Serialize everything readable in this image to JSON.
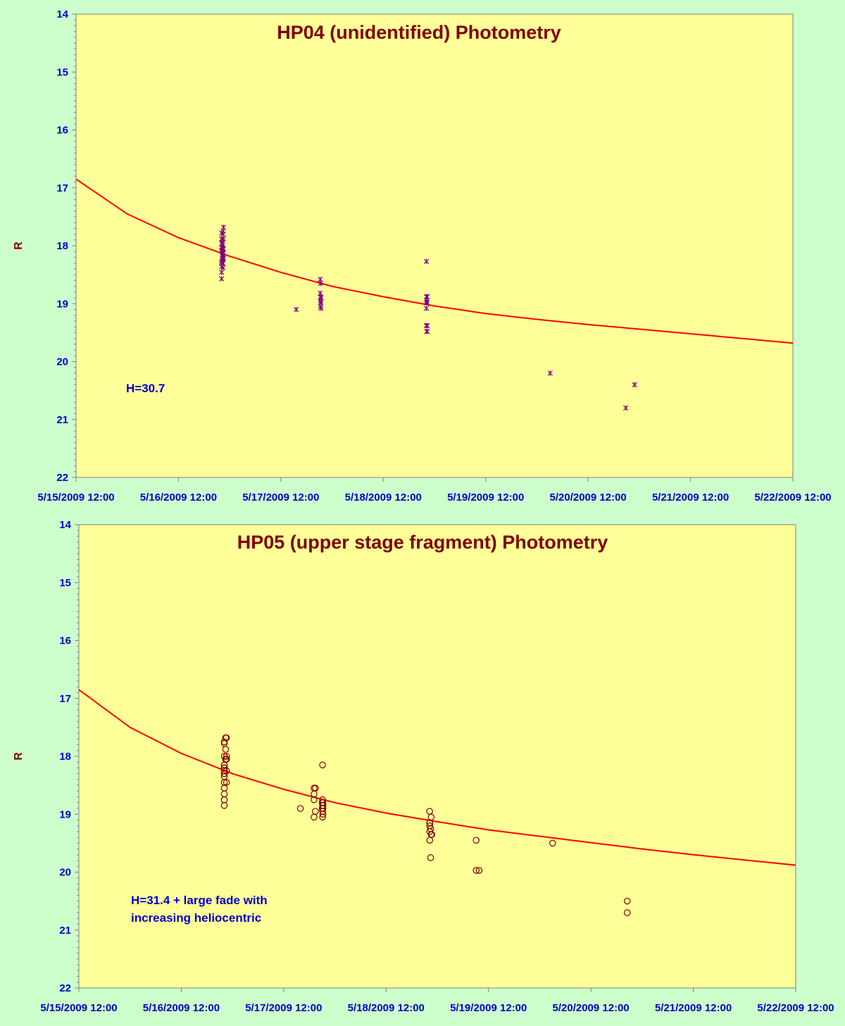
{
  "chart_data": [
    {
      "type": "scatter",
      "title": "HP04 (unidentified) Photometry",
      "xlabel": "",
      "ylabel": "R",
      "x_ticks": [
        "5/15/2009 12:00",
        "5/16/2009 12:00",
        "5/17/2009 12:00",
        "5/18/2009 12:00",
        "5/19/2009 12:00",
        "5/20/2009 12:00",
        "5/21/2009 12:00",
        "5/22/2009 12:00"
      ],
      "xlim": [
        "2009-05-15T12:00",
        "2009-05-22T12:00"
      ],
      "ylim": [
        14,
        22
      ],
      "y_inverted": true,
      "y_ticks": [
        14,
        15,
        16,
        17,
        18,
        19,
        20,
        21,
        22
      ],
      "annotation": "H=30.7",
      "marker": "star",
      "colors": {
        "plot_bg": "#ffff99",
        "page_bg": "#ccffcc",
        "marker": "#800080",
        "fit": "#ff0000",
        "title": "#7f0000",
        "ticks": "#0000cc"
      },
      "series": [
        {
          "x": [
            "2009-05-16T22:07",
            "2009-05-16T22:07",
            "2009-05-16T22:07",
            "2009-05-16T22:07",
            "2009-05-16T22:07",
            "2009-05-16T22:07",
            "2009-05-16T22:07",
            "2009-05-16T22:07",
            "2009-05-16T22:07",
            "2009-05-16T22:07",
            "2009-05-16T22:19",
            "2009-05-16T22:19",
            "2009-05-16T22:19",
            "2009-05-16T22:19",
            "2009-05-16T22:19",
            "2009-05-16T22:19",
            "2009-05-16T22:19",
            "2009-05-16T22:19",
            "2009-05-16T22:19",
            "2009-05-16T22:19",
            "2009-05-16T22:19",
            "2009-05-16T22:19",
            "2009-05-16T22:28",
            "2009-05-16T22:28",
            "2009-05-16T22:28",
            "2009-05-16T22:28",
            "2009-05-16T22:28",
            "2009-05-16T22:28",
            "2009-05-16T22:28",
            "2009-05-16T22:33",
            "2009-05-16T22:33",
            "2009-05-16T22:33",
            "2009-05-16T22:33",
            "2009-05-16T22:33",
            "2009-05-17T21:14",
            "2009-05-17T21:14",
            "2009-05-17T21:19",
            "2009-05-17T21:19",
            "2009-05-17T21:19",
            "2009-05-17T21:19",
            "2009-05-17T21:19",
            "2009-05-17T21:24",
            "2009-05-17T21:24",
            "2009-05-17T21:24",
            "2009-05-17T15:36",
            "2009-05-18T22:07",
            "2009-05-18T22:07",
            "2009-05-18T22:07",
            "2009-05-18T22:07",
            "2009-05-18T22:07",
            "2009-05-18T22:12",
            "2009-05-18T22:12",
            "2009-05-18T22:12",
            "2009-05-18T22:12",
            "2009-05-18T22:17",
            "2009-05-18T22:17",
            "2009-05-18T22:17",
            "2009-05-18T22:17",
            "2009-05-20T03:07",
            "2009-05-20T20:50",
            "2009-05-20T22:55"
          ],
          "y": [
            17.78,
            17.88,
            17.96,
            18.03,
            18.08,
            18.27,
            18.3,
            18.36,
            18.46,
            18.57,
            17.95,
            17.98,
            18.05,
            18.08,
            18.15,
            18.22,
            18.25,
            18.05,
            18.12,
            17.98,
            18.18,
            18.25,
            17.75,
            17.8,
            18.05,
            18.12,
            18.2,
            18.3,
            18.38,
            17.68,
            17.88,
            18.05,
            18.12,
            18.22,
            18.58,
            18.82,
            18.65,
            18.88,
            18.95,
            18.98,
            19.05,
            18.9,
            18.98,
            19.08,
            19.1,
            18.27,
            18.88,
            18.98,
            19.08,
            19.38,
            18.88,
            18.95,
            19.38,
            19.48,
            18.88,
            18.98,
            19.38,
            19.48,
            20.2,
            20.8,
            20.4
          ]
        }
      ],
      "fit": {
        "x": [
          "2009-05-15T12:00",
          "2009-05-16T00:00",
          "2009-05-16T12:00",
          "2009-05-17T00:00",
          "2009-05-17T12:00",
          "2009-05-18T00:00",
          "2009-05-18T12:00",
          "2009-05-19T00:00",
          "2009-05-19T12:00",
          "2009-05-20T00:00",
          "2009-05-20T12:00",
          "2009-05-21T00:00",
          "2009-05-21T12:00",
          "2009-05-22T00:00",
          "2009-05-22T12:00"
        ],
        "y": [
          16.85,
          17.45,
          17.86,
          18.18,
          18.46,
          18.7,
          18.88,
          19.04,
          19.17,
          19.27,
          19.36,
          19.44,
          19.52,
          19.6,
          19.68
        ]
      }
    },
    {
      "type": "scatter",
      "title": "HP05 (upper stage fragment) Photometry",
      "xlabel": "",
      "ylabel": "R",
      "x_ticks": [
        "5/15/2009 12:00",
        "5/16/2009 12:00",
        "5/17/2009 12:00",
        "5/18/2009 12:00",
        "5/19/2009 12:00",
        "5/20/2009 12:00",
        "5/21/2009 12:00",
        "5/22/2009 12:00"
      ],
      "xlim": [
        "2009-05-15T12:00",
        "2009-05-22T12:00"
      ],
      "ylim": [
        14,
        22
      ],
      "y_inverted": true,
      "y_ticks": [
        14,
        15,
        16,
        17,
        18,
        19,
        20,
        21,
        22
      ],
      "annotation_lines": [
        "H=31.4 + large fade with",
        "increasing heliocentric"
      ],
      "marker": "circle",
      "colors": {
        "plot_bg": "#ffff99",
        "page_bg": "#ccffcc",
        "marker": "#800000",
        "fit": "#ff0000",
        "title": "#7f0000",
        "ticks": "#0000cc"
      },
      "series": [
        {
          "x": [
            "2009-05-16T22:05",
            "2009-05-16T22:05",
            "2009-05-16T22:05",
            "2009-05-16T22:05",
            "2009-05-16T22:05",
            "2009-05-16T22:05",
            "2009-05-16T22:05",
            "2009-05-16T22:05",
            "2009-05-16T22:05",
            "2009-05-16T22:05",
            "2009-05-16T22:05",
            "2009-05-16T22:05",
            "2009-05-16T22:05",
            "2009-05-16T22:05",
            "2009-05-16T22:05",
            "2009-05-16T22:05",
            "2009-05-16T22:24",
            "2009-05-16T22:24",
            "2009-05-16T22:24",
            "2009-05-16T22:29",
            "2009-05-16T22:29",
            "2009-05-16T22:34",
            "2009-05-16T22:36",
            "2009-05-16T22:36",
            "2009-05-16T22:36",
            "2009-05-16T22:36",
            "2009-05-17T15:55",
            "2009-05-17T19:07",
            "2009-05-17T19:07",
            "2009-05-17T19:07",
            "2009-05-17T19:07",
            "2009-05-17T19:26",
            "2009-05-17T19:26",
            "2009-05-17T21:02",
            "2009-05-17T21:02",
            "2009-05-17T21:07",
            "2009-05-17T21:07",
            "2009-05-17T21:07",
            "2009-05-17T21:07",
            "2009-05-17T21:07",
            "2009-05-17T21:12",
            "2009-05-17T21:12",
            "2009-05-17T21:12",
            "2009-05-17T21:12",
            "2009-05-17T21:12",
            "2009-05-18T22:12",
            "2009-05-18T22:14",
            "2009-05-18T22:14",
            "2009-05-18T22:14",
            "2009-05-18T22:14",
            "2009-05-18T22:14",
            "2009-05-18T22:26",
            "2009-05-18T22:26",
            "2009-05-18T22:34",
            "2009-05-18T22:34",
            "2009-05-18T22:43",
            "2009-05-19T09:07",
            "2009-05-19T09:07",
            "2009-05-19T09:48",
            "2009-05-20T03:02",
            "2009-05-20T20:31",
            "2009-05-20T20:31"
          ],
          "y": [
            17.75,
            17.78,
            18.0,
            18.15,
            18.2,
            18.25,
            18.3,
            18.3,
            18.35,
            18.45,
            18.55,
            18.65,
            18.75,
            18.85,
            18.2,
            18.15,
            17.68,
            17.88,
            18.05,
            18.05,
            18.05,
            17.68,
            18.0,
            18.05,
            18.25,
            18.45,
            18.9,
            18.55,
            18.65,
            18.75,
            19.05,
            18.55,
            18.95,
            18.8,
            18.9,
            18.15,
            18.75,
            18.85,
            18.95,
            19.05,
            18.8,
            18.85,
            18.9,
            19.0,
            18.85,
            18.95,
            19.15,
            19.2,
            19.3,
            19.45,
            19.15,
            19.25,
            19.75,
            19.35,
            19.05,
            19.35,
            19.45,
            19.97,
            19.97,
            19.5,
            20.5,
            20.7
          ]
        }
      ],
      "fit": {
        "x": [
          "2009-05-15T12:00",
          "2009-05-16T00:00",
          "2009-05-16T12:00",
          "2009-05-17T00:00",
          "2009-05-17T12:00",
          "2009-05-18T00:00",
          "2009-05-18T12:00",
          "2009-05-19T00:00",
          "2009-05-19T12:00",
          "2009-05-20T00:00",
          "2009-05-20T12:00",
          "2009-05-21T00:00",
          "2009-05-21T12:00",
          "2009-05-22T00:00",
          "2009-05-22T12:00"
        ],
        "y": [
          16.85,
          17.5,
          17.95,
          18.3,
          18.57,
          18.8,
          18.98,
          19.13,
          19.27,
          19.38,
          19.49,
          19.6,
          19.7,
          19.79,
          19.88
        ]
      }
    }
  ]
}
